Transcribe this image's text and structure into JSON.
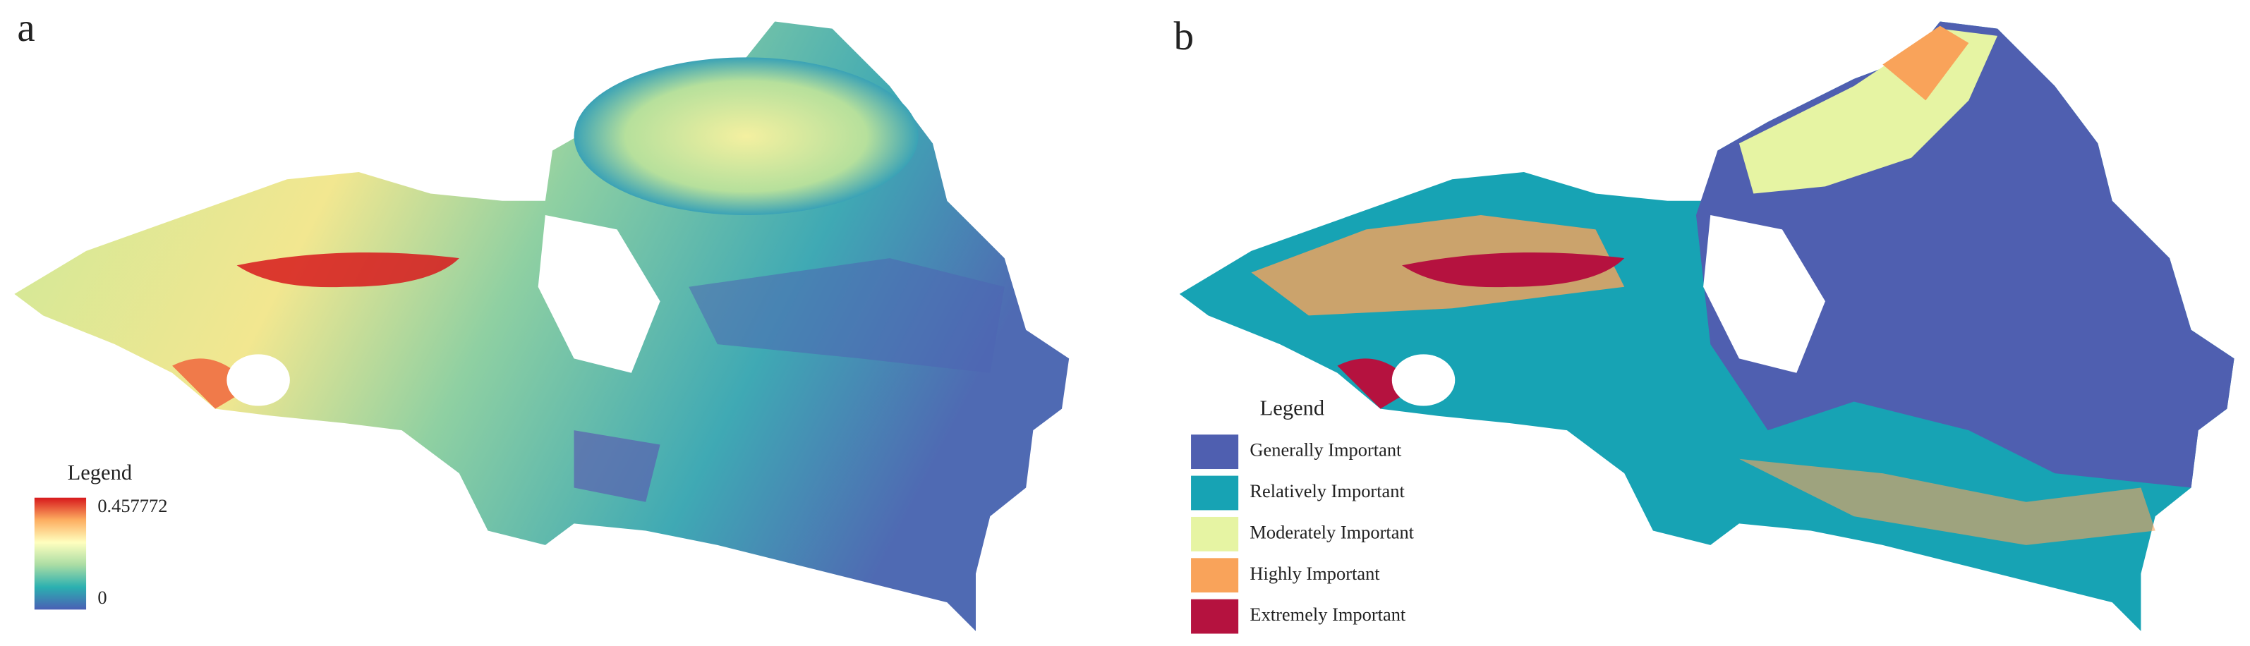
{
  "panel_a": {
    "label": "a",
    "legend": {
      "title": "Legend",
      "max_label": "0.457772",
      "min_label": "0",
      "colors": [
        "#d7191c",
        "#fdae61",
        "#ffffbf",
        "#abdda4",
        "#2bb0b0",
        "#4a5fb5"
      ]
    }
  },
  "panel_b": {
    "label": "b",
    "legend": {
      "title": "Legend",
      "items": [
        {
          "label": "Generally Important",
          "color": "#4f5fb0"
        },
        {
          "label": "Relatively Important",
          "color": "#17a3b4"
        },
        {
          "label": "Moderately Important",
          "color": "#e6f4a3"
        },
        {
          "label": "Highly Important",
          "color": "#f9a35a"
        },
        {
          "label": "Extremely Important",
          "color": "#b5123f"
        }
      ]
    }
  }
}
